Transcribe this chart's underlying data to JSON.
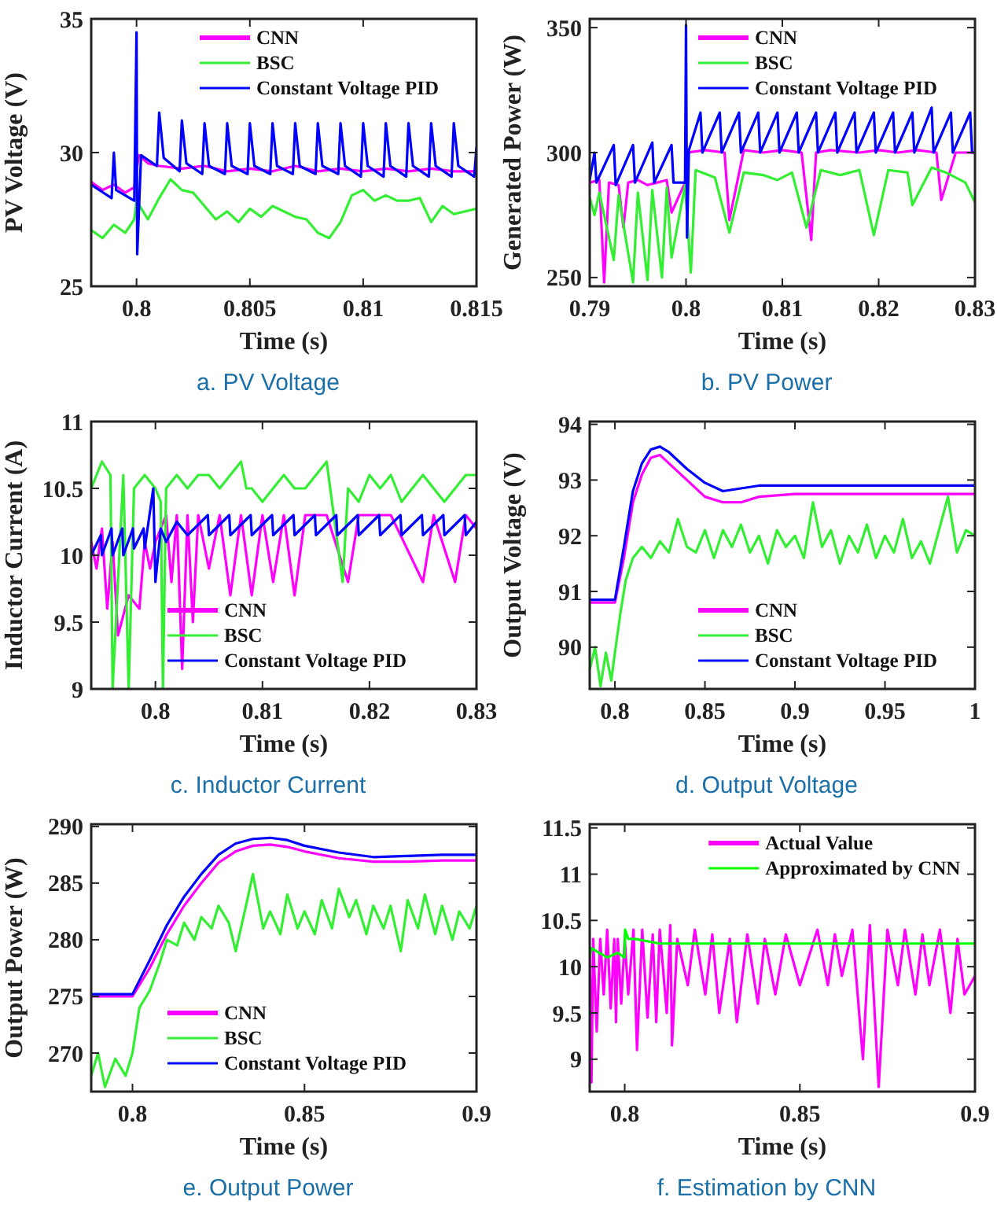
{
  "chart_data": [
    {
      "type": "line",
      "title": "a. PV Voltage",
      "xlabel": "Time (s)",
      "ylabel": "PV Voltage (V)",
      "xlim": [
        0.798,
        0.815
      ],
      "xticks": [
        0.8,
        0.805,
        0.81,
        0.815
      ],
      "ylim": [
        25,
        35
      ],
      "yticks": [
        25,
        30,
        35
      ],
      "legend": "top right",
      "series": [
        {
          "name": "CNN",
          "color": "#ff00ff",
          "x": [
            0.798,
            0.7985,
            0.799,
            0.7995,
            0.7999,
            0.8001,
            0.8005,
            0.801,
            0.802,
            0.803,
            0.804,
            0.805,
            0.806,
            0.807,
            0.808,
            0.809,
            0.81,
            0.811,
            0.812,
            0.813,
            0.814,
            0.815
          ],
          "values": [
            28.9,
            28.6,
            28.8,
            28.5,
            28.7,
            29.9,
            29.6,
            29.5,
            29.4,
            29.5,
            29.3,
            29.4,
            29.3,
            29.5,
            29.3,
            29.4,
            29.3,
            29.4,
            29.3,
            29.4,
            29.3,
            29.3
          ]
        },
        {
          "name": "BSC",
          "color": "#33ee33",
          "x": [
            0.798,
            0.7985,
            0.799,
            0.7995,
            0.7999,
            0.8,
            0.8005,
            0.801,
            0.8015,
            0.802,
            0.8025,
            0.803,
            0.8035,
            0.804,
            0.8045,
            0.805,
            0.8055,
            0.806,
            0.8065,
            0.807,
            0.8075,
            0.808,
            0.8085,
            0.809,
            0.8095,
            0.81,
            0.8105,
            0.811,
            0.8115,
            0.812,
            0.8125,
            0.813,
            0.8135,
            0.814,
            0.815
          ],
          "values": [
            27.1,
            26.8,
            27.3,
            27.0,
            27.5,
            28.2,
            27.5,
            28.3,
            29.0,
            28.6,
            28.5,
            28.0,
            27.5,
            27.8,
            27.4,
            27.9,
            27.6,
            28.0,
            27.8,
            27.6,
            27.5,
            27.0,
            26.8,
            27.4,
            28.4,
            28.6,
            28.2,
            28.4,
            28.2,
            28.2,
            28.3,
            27.4,
            28.0,
            27.7,
            27.9
          ]
        },
        {
          "name": "Constant Voltage PID",
          "color": "#0000ff",
          "x": [
            0.798,
            0.7989,
            0.799,
            0.7991,
            0.7999,
            0.8,
            0.80003,
            0.8002,
            0.8009,
            0.801,
            0.8012,
            0.8019,
            0.802,
            0.8022,
            0.8029,
            0.803,
            0.8032,
            0.8039,
            0.804,
            0.8042,
            0.8049,
            0.805,
            0.8052,
            0.8059,
            0.806,
            0.8062,
            0.8069,
            0.807,
            0.8072,
            0.8079,
            0.808,
            0.8082,
            0.8089,
            0.809,
            0.8092,
            0.8099,
            0.81,
            0.8102,
            0.8109,
            0.811,
            0.8112,
            0.8119,
            0.812,
            0.8122,
            0.8129,
            0.813,
            0.8132,
            0.8139,
            0.814,
            0.8142,
            0.8149,
            0.815
          ],
          "values": [
            28.8,
            28.3,
            30.0,
            28.6,
            28.2,
            34.5,
            26.2,
            29.9,
            29.5,
            31.5,
            29.8,
            29.3,
            31.2,
            29.6,
            29.2,
            31.1,
            29.5,
            29.2,
            31.1,
            29.5,
            29.2,
            31.1,
            29.5,
            29.2,
            31.1,
            29.5,
            29.2,
            31.1,
            29.5,
            29.2,
            31.1,
            29.5,
            29.2,
            31.1,
            29.5,
            29.1,
            31.1,
            29.5,
            29.1,
            31.1,
            29.5,
            29.1,
            31.1,
            29.5,
            29.1,
            31.1,
            29.5,
            29.1,
            31.1,
            29.5,
            29.1,
            30.2
          ]
        }
      ]
    },
    {
      "type": "line",
      "title": "b. PV Power",
      "xlabel": "Time (s)",
      "ylabel": "Generated Power (W)",
      "xlim": [
        0.79,
        0.83
      ],
      "xticks": [
        0.79,
        0.8,
        0.81,
        0.82,
        0.83
      ],
      "ylim": [
        246.5,
        353.5
      ],
      "yticks": [
        250,
        300,
        350
      ],
      "legend": "top right",
      "series": [
        {
          "name": "CNN",
          "color": "#ff00ff",
          "x": [
            0.79,
            0.791,
            0.7915,
            0.792,
            0.793,
            0.7935,
            0.794,
            0.795,
            0.796,
            0.797,
            0.798,
            0.7985,
            0.7999,
            0.8001,
            0.802,
            0.804,
            0.8045,
            0.806,
            0.808,
            0.81,
            0.812,
            0.813,
            0.8135,
            0.815,
            0.818,
            0.82,
            0.822,
            0.824,
            0.826,
            0.8265,
            0.828,
            0.83
          ],
          "values": [
            288,
            289,
            248,
            288,
            287,
            270,
            288,
            289,
            287,
            288,
            289,
            276,
            288,
            300,
            301,
            300,
            273,
            301,
            300,
            301,
            300,
            265,
            300,
            301,
            300,
            301,
            300,
            301,
            300,
            281,
            300,
            300
          ]
        },
        {
          "name": "BSC",
          "color": "#33ee33",
          "x": [
            0.79,
            0.7905,
            0.791,
            0.7925,
            0.793,
            0.7945,
            0.795,
            0.796,
            0.7965,
            0.7975,
            0.798,
            0.7985,
            0.7999,
            0.8005,
            0.801,
            0.803,
            0.8045,
            0.806,
            0.808,
            0.8095,
            0.811,
            0.8125,
            0.814,
            0.816,
            0.818,
            0.8195,
            0.821,
            0.823,
            0.8235,
            0.8255,
            0.827,
            0.829,
            0.83
          ],
          "values": [
            282,
            275,
            284,
            257,
            283,
            248,
            284,
            249,
            285,
            250,
            286,
            258,
            287,
            252,
            293,
            290,
            268,
            292,
            291,
            289,
            292,
            270,
            293,
            291,
            293,
            267,
            293,
            292,
            279,
            294,
            292,
            288,
            280
          ]
        },
        {
          "name": "Constant Voltage PID",
          "color": "#0000ff",
          "x": [
            0.79,
            0.7905,
            0.7907,
            0.7925,
            0.7927,
            0.7945,
            0.7947,
            0.7965,
            0.7967,
            0.7985,
            0.7987,
            0.7999,
            0.8,
            0.8001,
            0.8003,
            0.8015,
            0.8017,
            0.8035,
            0.8037,
            0.8055,
            0.8057,
            0.8075,
            0.8077,
            0.8095,
            0.8097,
            0.8115,
            0.8117,
            0.8135,
            0.8137,
            0.8155,
            0.8157,
            0.8175,
            0.8177,
            0.8195,
            0.8197,
            0.8215,
            0.8217,
            0.8235,
            0.8237,
            0.8255,
            0.8257,
            0.8275,
            0.8277,
            0.8295,
            0.8297,
            0.83
          ],
          "values": [
            289,
            300,
            288,
            303,
            287,
            303,
            288,
            304,
            288,
            303,
            288,
            288,
            351,
            266,
            301,
            316,
            300,
            316,
            300,
            316,
            300,
            316,
            300,
            316,
            300,
            316,
            300,
            316,
            300,
            316,
            300,
            316,
            300,
            316,
            300,
            316,
            300,
            316,
            300,
            318,
            300,
            316,
            300,
            316,
            300,
            300
          ]
        }
      ]
    },
    {
      "type": "line",
      "title": "c. Inductor Current",
      "xlabel": "Time (s)",
      "ylabel": "Inductor Current (A)",
      "xlim": [
        0.794,
        0.83
      ],
      "xticks": [
        0.8,
        0.81,
        0.82,
        0.83
      ],
      "ylim": [
        9,
        11
      ],
      "yticks": [
        9,
        9.5,
        10,
        10.5,
        11
      ],
      "legend": "bottom",
      "series": [
        {
          "name": "CNN",
          "color": "#ff00ff",
          "x": [
            0.794,
            0.7945,
            0.795,
            0.7955,
            0.796,
            0.7965,
            0.7975,
            0.7985,
            0.799,
            0.7995,
            0.8,
            0.801,
            0.8015,
            0.802,
            0.8025,
            0.803,
            0.8035,
            0.804,
            0.805,
            0.806,
            0.807,
            0.808,
            0.809,
            0.81,
            0.811,
            0.812,
            0.813,
            0.814,
            0.816,
            0.818,
            0.819,
            0.822,
            0.825,
            0.826,
            0.828,
            0.829,
            0.83
          ],
          "values": [
            10.1,
            9.9,
            10.2,
            9.6,
            10.1,
            9.4,
            9.7,
            9.6,
            10.1,
            9.9,
            10.1,
            10.3,
            9.8,
            10.3,
            9.15,
            10.3,
            9.5,
            10.3,
            9.9,
            10.3,
            9.7,
            10.3,
            9.7,
            10.3,
            9.8,
            10.3,
            9.7,
            10.3,
            10.3,
            9.8,
            10.3,
            10.3,
            9.8,
            10.3,
            9.8,
            10.3,
            10.2
          ]
        },
        {
          "name": "BSC",
          "color": "#33ee33",
          "x": [
            0.794,
            0.795,
            0.7958,
            0.796,
            0.797,
            0.7975,
            0.798,
            0.799,
            0.8,
            0.8005,
            0.8007,
            0.801,
            0.802,
            0.803,
            0.804,
            0.805,
            0.806,
            0.807,
            0.808,
            0.8085,
            0.809,
            0.81,
            0.811,
            0.812,
            0.813,
            0.814,
            0.815,
            0.816,
            0.8175,
            0.818,
            0.819,
            0.82,
            0.821,
            0.822,
            0.823,
            0.824,
            0.825,
            0.826,
            0.827,
            0.828,
            0.829,
            0.83
          ],
          "values": [
            10.5,
            10.7,
            10.6,
            9.0,
            10.6,
            9.0,
            10.5,
            10.6,
            10.5,
            10.4,
            9.0,
            10.5,
            10.6,
            10.5,
            10.6,
            10.6,
            10.5,
            10.6,
            10.7,
            10.5,
            10.5,
            10.4,
            10.5,
            10.6,
            10.5,
            10.5,
            10.6,
            10.7,
            9.8,
            10.5,
            10.4,
            10.6,
            10.5,
            10.6,
            10.4,
            10.5,
            10.6,
            10.5,
            10.4,
            10.5,
            10.6,
            10.6
          ]
        },
        {
          "name": "Constant Voltage PID",
          "color": "#0000ff",
          "x": [
            0.794,
            0.7949,
            0.795,
            0.7959,
            0.796,
            0.7969,
            0.797,
            0.7979,
            0.798,
            0.7989,
            0.799,
            0.7998,
            0.8,
            0.8005,
            0.801,
            0.802,
            0.803,
            0.8049,
            0.805,
            0.8069,
            0.807,
            0.8089,
            0.809,
            0.8109,
            0.811,
            0.8129,
            0.813,
            0.8149,
            0.815,
            0.8169,
            0.817,
            0.8189,
            0.819,
            0.8209,
            0.821,
            0.8229,
            0.823,
            0.8249,
            0.825,
            0.8269,
            0.827,
            0.8289,
            0.829,
            0.83
          ],
          "values": [
            10.0,
            10.15,
            10.0,
            10.2,
            10.0,
            10.2,
            10.0,
            10.2,
            10.05,
            10.2,
            10.05,
            10.5,
            9.8,
            10.2,
            10.1,
            10.25,
            10.15,
            10.3,
            10.15,
            10.3,
            10.15,
            10.3,
            10.15,
            10.3,
            10.15,
            10.3,
            10.15,
            10.3,
            10.15,
            10.3,
            10.15,
            10.3,
            10.15,
            10.3,
            10.15,
            10.3,
            10.15,
            10.3,
            10.15,
            10.3,
            10.15,
            10.3,
            10.15,
            10.25
          ]
        }
      ]
    },
    {
      "type": "line",
      "title": "d. Output Voltage",
      "xlabel": "Time (s)",
      "ylabel": "Output Voltage (V)",
      "xlim": [
        0.786,
        1
      ],
      "xticks": [
        0.8,
        0.85,
        0.9,
        0.95,
        1
      ],
      "ylim": [
        89.25,
        94.05
      ],
      "yticks": [
        90,
        91,
        92,
        93,
        94
      ],
      "legend": "bottom right",
      "series": [
        {
          "name": "CNN",
          "color": "#ff00ff",
          "x": [
            0.786,
            0.8,
            0.805,
            0.81,
            0.815,
            0.82,
            0.825,
            0.83,
            0.84,
            0.85,
            0.86,
            0.87,
            0.88,
            0.9,
            0.95,
            1
          ],
          "values": [
            90.8,
            90.8,
            91.6,
            92.6,
            93.1,
            93.4,
            93.45,
            93.3,
            93.0,
            92.7,
            92.6,
            92.6,
            92.7,
            92.75,
            92.75,
            92.75
          ]
        },
        {
          "name": "BSC",
          "color": "#33ee33",
          "x": [
            0.786,
            0.789,
            0.792,
            0.795,
            0.798,
            0.8,
            0.803,
            0.806,
            0.81,
            0.815,
            0.82,
            0.825,
            0.83,
            0.835,
            0.84,
            0.845,
            0.85,
            0.855,
            0.86,
            0.865,
            0.87,
            0.875,
            0.88,
            0.885,
            0.89,
            0.895,
            0.9,
            0.905,
            0.91,
            0.915,
            0.92,
            0.925,
            0.93,
            0.935,
            0.94,
            0.945,
            0.95,
            0.955,
            0.96,
            0.965,
            0.97,
            0.975,
            0.98,
            0.985,
            0.99,
            0.995,
            1
          ],
          "values": [
            89.6,
            90.0,
            89.3,
            89.9,
            89.4,
            89.9,
            90.6,
            91.2,
            91.6,
            91.8,
            91.6,
            91.9,
            91.7,
            92.3,
            91.8,
            91.7,
            92.1,
            91.6,
            92.1,
            91.8,
            92.2,
            91.7,
            92.0,
            91.5,
            92.1,
            91.8,
            92.0,
            91.6,
            92.6,
            91.8,
            92.1,
            91.5,
            92.0,
            91.7,
            92.2,
            91.6,
            92.0,
            91.7,
            92.3,
            91.6,
            91.9,
            91.5,
            92.1,
            92.7,
            91.7,
            92.1,
            92.0
          ]
        },
        {
          "name": "Constant Voltage PID",
          "color": "#0000ff",
          "x": [
            0.786,
            0.8,
            0.805,
            0.81,
            0.815,
            0.82,
            0.825,
            0.83,
            0.84,
            0.85,
            0.86,
            0.87,
            0.88,
            0.9,
            0.95,
            1
          ],
          "values": [
            90.85,
            90.85,
            91.8,
            92.8,
            93.3,
            93.55,
            93.6,
            93.5,
            93.2,
            92.95,
            92.8,
            92.85,
            92.9,
            92.9,
            92.9,
            92.9
          ]
        }
      ]
    },
    {
      "type": "line",
      "title": "e. Output Power",
      "xlabel": "Time (s)",
      "ylabel": "Output Power (W)",
      "xlim": [
        0.788,
        0.9
      ],
      "xticks": [
        0.8,
        0.85,
        0.9
      ],
      "ylim": [
        266.6,
        290.2
      ],
      "yticks": [
        270,
        275,
        280,
        285,
        290
      ],
      "legend": "bottom",
      "series": [
        {
          "name": "CNN",
          "color": "#ff00ff",
          "x": [
            0.788,
            0.8,
            0.805,
            0.81,
            0.815,
            0.82,
            0.825,
            0.83,
            0.835,
            0.84,
            0.845,
            0.85,
            0.86,
            0.87,
            0.88,
            0.89,
            0.9
          ],
          "values": [
            275,
            275,
            277.5,
            280.5,
            283,
            285,
            286.8,
            287.8,
            288.3,
            288.4,
            288.2,
            287.8,
            287.2,
            286.9,
            286.9,
            287,
            287
          ]
        },
        {
          "name": "BSC",
          "color": "#33ee33",
          "x": [
            0.788,
            0.79,
            0.792,
            0.795,
            0.798,
            0.8,
            0.802,
            0.805,
            0.808,
            0.81,
            0.813,
            0.815,
            0.818,
            0.82,
            0.823,
            0.825,
            0.828,
            0.83,
            0.833,
            0.835,
            0.838,
            0.84,
            0.843,
            0.845,
            0.848,
            0.85,
            0.853,
            0.855,
            0.858,
            0.86,
            0.863,
            0.865,
            0.868,
            0.87,
            0.873,
            0.875,
            0.878,
            0.88,
            0.883,
            0.885,
            0.888,
            0.89,
            0.893,
            0.895,
            0.898,
            0.9
          ],
          "values": [
            268,
            270,
            267,
            269.5,
            268,
            270,
            274,
            275.5,
            278,
            280,
            279.5,
            281.5,
            280,
            282,
            281,
            283,
            281.5,
            279,
            283,
            285.8,
            281,
            282.5,
            280.5,
            284,
            281,
            282.5,
            280.5,
            283.5,
            281,
            284.5,
            282,
            283.5,
            280.5,
            283,
            281,
            283,
            279,
            283.5,
            281,
            284,
            280.5,
            283,
            280,
            282.5,
            281,
            283
          ]
        },
        {
          "name": "Constant Voltage PID",
          "color": "#0000ff",
          "x": [
            0.788,
            0.8,
            0.805,
            0.81,
            0.815,
            0.82,
            0.825,
            0.83,
            0.835,
            0.84,
            0.845,
            0.85,
            0.86,
            0.87,
            0.88,
            0.89,
            0.9
          ],
          "values": [
            275.2,
            275.2,
            278.2,
            281.3,
            283.8,
            285.8,
            287.5,
            288.5,
            288.9,
            289,
            288.8,
            288.3,
            287.7,
            287.3,
            287.4,
            287.5,
            287.5
          ]
        }
      ]
    },
    {
      "type": "line",
      "title": "f. Estimation by CNN",
      "xlabel": "Time (s)",
      "xlim": [
        0.79,
        0.9
      ],
      "xticks": [
        0.8,
        0.85,
        0.9
      ],
      "ylim": [
        8.65,
        11.54
      ],
      "yticks": [
        9,
        9.5,
        10,
        10.5,
        11,
        11.5
      ],
      "legend": "top right",
      "series": [
        {
          "name": "Actual Value",
          "color": "#ff00ff",
          "x": [
            0.79,
            0.7905,
            0.791,
            0.792,
            0.793,
            0.794,
            0.795,
            0.796,
            0.797,
            0.7975,
            0.798,
            0.799,
            0.8,
            0.801,
            0.8025,
            0.8035,
            0.805,
            0.8065,
            0.808,
            0.809,
            0.81,
            0.812,
            0.813,
            0.8135,
            0.815,
            0.818,
            0.82,
            0.823,
            0.825,
            0.827,
            0.83,
            0.832,
            0.835,
            0.838,
            0.84,
            0.843,
            0.846,
            0.85,
            0.855,
            0.858,
            0.86,
            0.862,
            0.865,
            0.868,
            0.87,
            0.8725,
            0.875,
            0.878,
            0.88,
            0.883,
            0.885,
            0.887,
            0.89,
            0.893,
            0.895,
            0.897,
            0.9
          ],
          "values": [
            10.2,
            8.75,
            10.3,
            9.3,
            10.3,
            9.7,
            10.4,
            9.55,
            10.3,
            9.4,
            10.3,
            9.6,
            10.3,
            9.7,
            10.4,
            9.1,
            10.4,
            9.45,
            10.35,
            9.4,
            10.4,
            9.5,
            10.45,
            9.15,
            10.3,
            9.8,
            10.4,
            9.7,
            10.35,
            9.5,
            10.3,
            9.4,
            10.35,
            9.6,
            10.3,
            9.7,
            10.35,
            9.8,
            10.4,
            9.8,
            10.35,
            9.9,
            10.4,
            9.0,
            10.45,
            8.7,
            10.4,
            9.8,
            10.4,
            9.7,
            10.35,
            9.8,
            10.4,
            9.5,
            10.3,
            9.7,
            9.9
          ]
        },
        {
          "name": "Approximated by CNN",
          "color": "#00ff00",
          "x": [
            0.79,
            0.7905,
            0.795,
            0.798,
            0.7999,
            0.8001,
            0.801,
            0.803,
            0.81,
            0.82,
            0.84,
            0.86,
            0.88,
            0.9
          ],
          "values": [
            10.1,
            10.2,
            10.1,
            10.15,
            10.1,
            10.4,
            10.3,
            10.3,
            10.25,
            10.25,
            10.25,
            10.25,
            10.25,
            10.25
          ]
        }
      ]
    }
  ]
}
